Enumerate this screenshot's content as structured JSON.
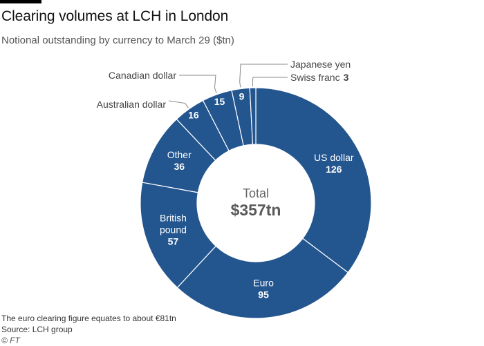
{
  "header": {
    "title": "Clearing volumes at LCH in London",
    "subtitle": "Notional outstanding by currency to March 29 ($tn)"
  },
  "colors": {
    "slice": "#23558f",
    "divider": "#ffffff",
    "label_inside": "#ffffff",
    "label_outside": "#444444",
    "leader": "#888888",
    "center_text": "#666666",
    "center_value": "#5a5a5a",
    "topbar": "#000000"
  },
  "chart_data": {
    "type": "donut",
    "title": "Clearing volumes at LCH in London",
    "subtitle": "Notional outstanding by currency to March 29 ($tn)",
    "center": {
      "label": "Total",
      "value": "$357tn"
    },
    "slices": [
      {
        "name": "US dollar",
        "value": 126,
        "label_lines": [
          "US dollar"
        ],
        "value_label": "126",
        "label_position": "inside"
      },
      {
        "name": "Euro",
        "value": 95,
        "label_lines": [
          "Euro"
        ],
        "value_label": "95",
        "label_position": "inside"
      },
      {
        "name": "British pound",
        "value": 57,
        "label_lines": [
          "British",
          "pound"
        ],
        "value_label": "57",
        "label_position": "inside"
      },
      {
        "name": "Other",
        "value": 36,
        "label_lines": [
          "Other"
        ],
        "value_label": "36",
        "label_position": "inside"
      },
      {
        "name": "Australian dollar",
        "value": 16,
        "label_lines": [
          "Australian dollar"
        ],
        "value_label": "16",
        "label_position": "outside-value-inside"
      },
      {
        "name": "Canadian dollar",
        "value": 15,
        "label_lines": [
          "Canadian dollar"
        ],
        "value_label": "15",
        "label_position": "outside-value-inside"
      },
      {
        "name": "Japanese yen",
        "value": 9,
        "label_lines": [
          "Japanese yen"
        ],
        "value_label": "9",
        "label_position": "outside-value-inside"
      },
      {
        "name": "Swiss franc",
        "value": 3,
        "label_lines": [
          "Swiss franc"
        ],
        "value_label": "3",
        "label_position": "outside"
      }
    ]
  },
  "footer": {
    "note": "The euro clearing figure equates to about €81tn",
    "source": "Source: LCH group",
    "credit": "© FT"
  }
}
